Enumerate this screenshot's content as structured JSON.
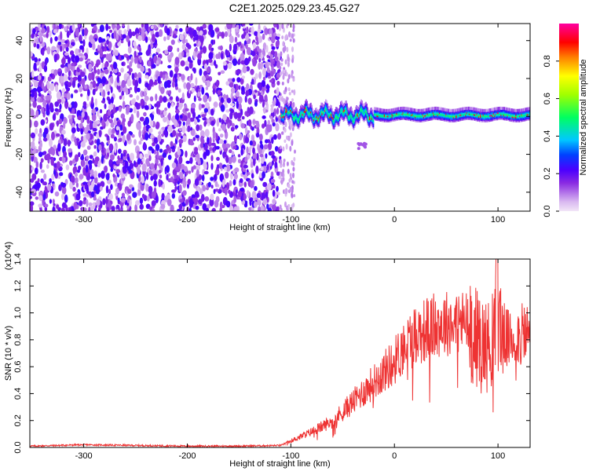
{
  "title": "C2E1.2025.029.23.45.G27",
  "chart_data": [
    {
      "type": "heatmap",
      "title": "C2E1.2025.029.23.45.G27",
      "xlabel": "Height of straight line (km)",
      "ylabel": "Frequency (Hz)",
      "xlim": [
        -352,
        131
      ],
      "ylim": [
        -50,
        49
      ],
      "xticks": [
        -300,
        -200,
        -100,
        0,
        100
      ],
      "yticks": [
        -40,
        -20,
        0,
        20,
        40
      ],
      "colorbar": {
        "label": "Normalized spectral amplitude",
        "range": [
          0.0,
          1.0
        ],
        "ticks": [
          "0.0",
          "0.2",
          "0.4",
          "0.6",
          "0.8"
        ],
        "tick_values": [
          0.0,
          0.2,
          0.4,
          0.6,
          0.8
        ]
      },
      "regions": [
        {
          "name": "noise",
          "x_range": [
            -352,
            -110
          ],
          "freq_range": [
            -50,
            49
          ],
          "amplitude": 0.2
        },
        {
          "name": "signal",
          "x_range": [
            -110,
            131
          ],
          "center_freq": 1,
          "amplitude": 0.45
        }
      ]
    },
    {
      "type": "line",
      "xlabel": "Height of straight line (km)",
      "ylabel": "SNR (10 * v/v)",
      "scale_label": "(x10^4)",
      "xlim": [
        -352,
        131
      ],
      "ylim": [
        0.0,
        1.4
      ],
      "xticks": [
        -300,
        -200,
        -100,
        0,
        100
      ],
      "yticks": [
        "0.0",
        "0.2",
        "0.4",
        "0.6",
        "0.8",
        "1.0",
        "1.2",
        "1.4"
      ],
      "ytick_values": [
        0.0,
        0.2,
        0.4,
        0.6,
        0.8,
        1.0,
        1.2,
        1.4
      ],
      "series": [
        {
          "name": "SNR",
          "color": "#ee3333",
          "x": [
            -352,
            -300,
            -250,
            -200,
            -150,
            -110,
            -100,
            -80,
            -60,
            -40,
            -20,
            0,
            10,
            20,
            30,
            40,
            50,
            60,
            70,
            80,
            90,
            95,
            100,
            105,
            110,
            120,
            131
          ],
          "y": [
            0.01,
            0.02,
            0.015,
            0.01,
            0.01,
            0.015,
            0.05,
            0.12,
            0.2,
            0.35,
            0.5,
            0.66,
            0.78,
            0.86,
            0.9,
            0.93,
            0.95,
            0.96,
            0.95,
            0.85,
            0.78,
            0.85,
            1.0,
            0.88,
            0.82,
            0.85,
            0.88
          ]
        }
      ]
    }
  ]
}
